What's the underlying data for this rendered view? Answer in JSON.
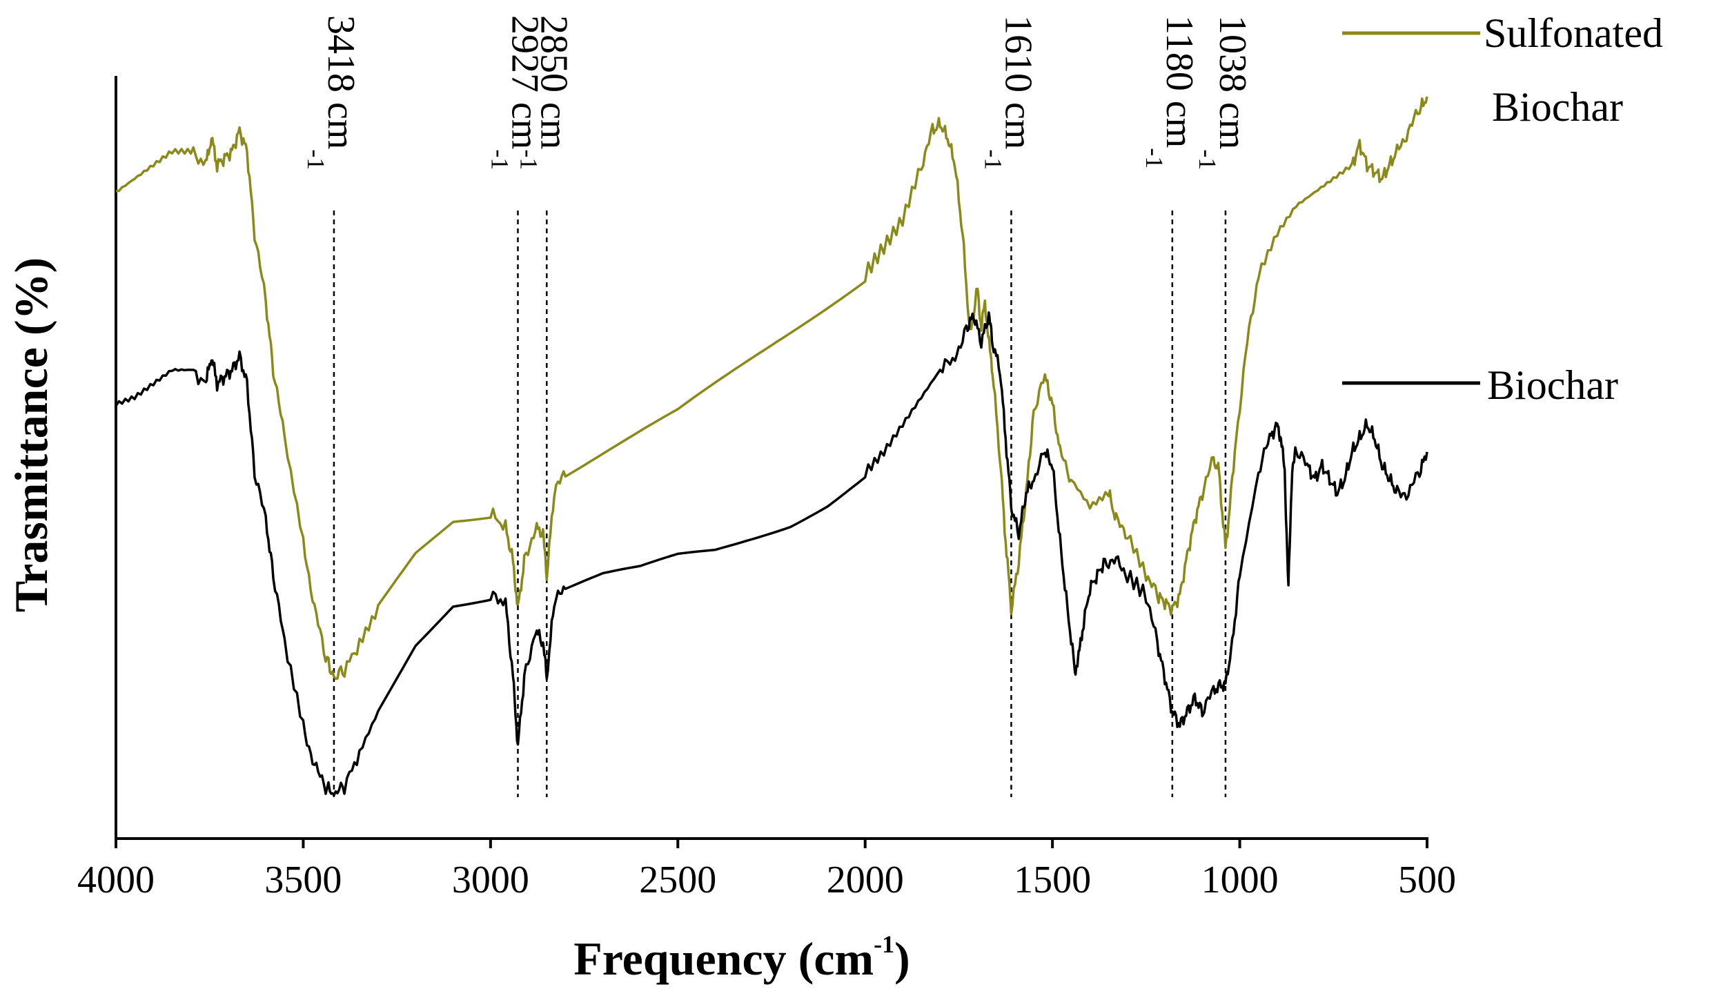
{
  "chart_data": {
    "type": "line",
    "title": "",
    "xlabel": "Frequency (cm",
    "xlabel_sup": "-1",
    "xlabel_close": ")",
    "ylabel": "Trasmittance (%)",
    "xlim": [
      4000,
      500
    ],
    "ylim": [
      0,
      100
    ],
    "grid": false,
    "x_ticks": [
      4000,
      3500,
      3000,
      2500,
      2000,
      1500,
      1000,
      500
    ],
    "legend": [
      {
        "name": "Sulfonated",
        "name2": "Biochar",
        "color": "#8a8a1a"
      },
      {
        "name": "Biochar",
        "color": "#000000"
      }
    ],
    "series": [
      {
        "name": "Sulfonated Biochar",
        "color": "#8a8a1a",
        "x": [
          4000,
          3950,
          3900,
          3850,
          3800,
          3760,
          3745,
          3730,
          3710,
          3690,
          3670,
          3650,
          3630,
          3600,
          3580,
          3550,
          3500,
          3470,
          3440,
          3418,
          3390,
          3350,
          3300,
          3200,
          3100,
          3000,
          2960,
          2940,
          2927,
          2910,
          2880,
          2860,
          2850,
          2830,
          2800,
          2700,
          2600,
          2500,
          2400,
          2300,
          2200,
          2100,
          2000,
          1950,
          1900,
          1850,
          1820,
          1800,
          1780,
          1760,
          1740,
          1720,
          1700,
          1690,
          1680,
          1670,
          1660,
          1640,
          1625,
          1610,
          1590,
          1570,
          1550,
          1520,
          1500,
          1480,
          1450,
          1400,
          1350,
          1330,
          1300,
          1250,
          1220,
          1200,
          1180,
          1160,
          1140,
          1120,
          1100,
          1070,
          1055,
          1045,
          1038,
          1030,
          1010,
          980,
          950,
          900,
          850,
          800,
          750,
          700,
          680,
          660,
          640,
          620,
          600,
          580,
          550,
          520,
          500
        ],
        "y": [
          86,
          88,
          90,
          92,
          92,
          90,
          94,
          90,
          91,
          92,
          95,
          92,
          80,
          70,
          60,
          50,
          35,
          25,
          18,
          15,
          16,
          20,
          25,
          33,
          38,
          39,
          37,
          32,
          25,
          32,
          37,
          36,
          30,
          42,
          45,
          48,
          51,
          54,
          58,
          62,
          66,
          70,
          74,
          78,
          82,
          90,
          95,
          96,
          94,
          90,
          80,
          65,
          72,
          66,
          70,
          64,
          60,
          47,
          35,
          25,
          32,
          42,
          54,
          59,
          55,
          48,
          44,
          40,
          42,
          38,
          36,
          30,
          27,
          26,
          25,
          27,
          33,
          38,
          42,
          47,
          45,
          38,
          34,
          38,
          50,
          64,
          74,
          80,
          84,
          86,
          88,
          90,
          93,
          90,
          89,
          88,
          90,
          92,
          95,
          98,
          100
        ]
      },
      {
        "name": "Biochar",
        "color": "#000000",
        "x": [
          4000,
          3950,
          3900,
          3850,
          3800,
          3760,
          3745,
          3730,
          3710,
          3690,
          3670,
          3650,
          3630,
          3600,
          3580,
          3550,
          3500,
          3470,
          3440,
          3418,
          3390,
          3350,
          3300,
          3200,
          3100,
          3000,
          2960,
          2940,
          2927,
          2910,
          2880,
          2860,
          2850,
          2830,
          2800,
          2700,
          2600,
          2500,
          2400,
          2300,
          2200,
          2100,
          2000,
          1950,
          1900,
          1850,
          1800,
          1760,
          1730,
          1710,
          1690,
          1670,
          1660,
          1640,
          1625,
          1610,
          1590,
          1570,
          1550,
          1520,
          1500,
          1480,
          1460,
          1440,
          1430,
          1420,
          1400,
          1380,
          1360,
          1330,
          1300,
          1250,
          1220,
          1200,
          1180,
          1160,
          1140,
          1120,
          1100,
          1070,
          1050,
          1038,
          1020,
          1000,
          950,
          920,
          900,
          890,
          880,
          870,
          860,
          850,
          820,
          800,
          780,
          760,
          740,
          720,
          700,
          680,
          660,
          640,
          620,
          600,
          580,
          550,
          520,
          500
        ],
        "y": [
          55,
          56,
          58,
          60,
          60,
          58,
          62,
          58,
          59,
          60,
          62,
          58,
          45,
          38,
          30,
          20,
          8,
          2,
          -1,
          -2,
          -1,
          4,
          10,
          20,
          26,
          27,
          26,
          15,
          5,
          15,
          22,
          20,
          15,
          26,
          28,
          30,
          31,
          33,
          34,
          36,
          38,
          41,
          45,
          48,
          52,
          56,
          60,
          62,
          66,
          68,
          64,
          68,
          64,
          60,
          50,
          40,
          36,
          42,
          44,
          48,
          46,
          35,
          25,
          16,
          18,
          22,
          28,
          30,
          32,
          32,
          30,
          27,
          20,
          15,
          10,
          8,
          10,
          12,
          10,
          13,
          14,
          14,
          20,
          30,
          45,
          50,
          52,
          50,
          45,
          28,
          46,
          48,
          46,
          44,
          46,
          44,
          42,
          44,
          48,
          50,
          52,
          50,
          46,
          44,
          42,
          42,
          45,
          48
        ]
      }
    ],
    "annotations": [
      {
        "x": 3418,
        "base": "3418 cm",
        "sup": "-1",
        "y_top": 15
      },
      {
        "x": 2927,
        "base": "2927 cm",
        "sup": "-1",
        "y_top": 25
      },
      {
        "x": 2850,
        "base": "2850 cm",
        "sup": "-1",
        "y_top": 30
      },
      {
        "x": 1610,
        "base": "1610 cm",
        "sup": "-1",
        "y_top": 25
      },
      {
        "x": 1180,
        "base": "1180 cm",
        "sup": "-1",
        "y_top": 25
      },
      {
        "x": 1038,
        "base": "1038 cm",
        "sup": "-1",
        "y_top": 34
      }
    ]
  }
}
